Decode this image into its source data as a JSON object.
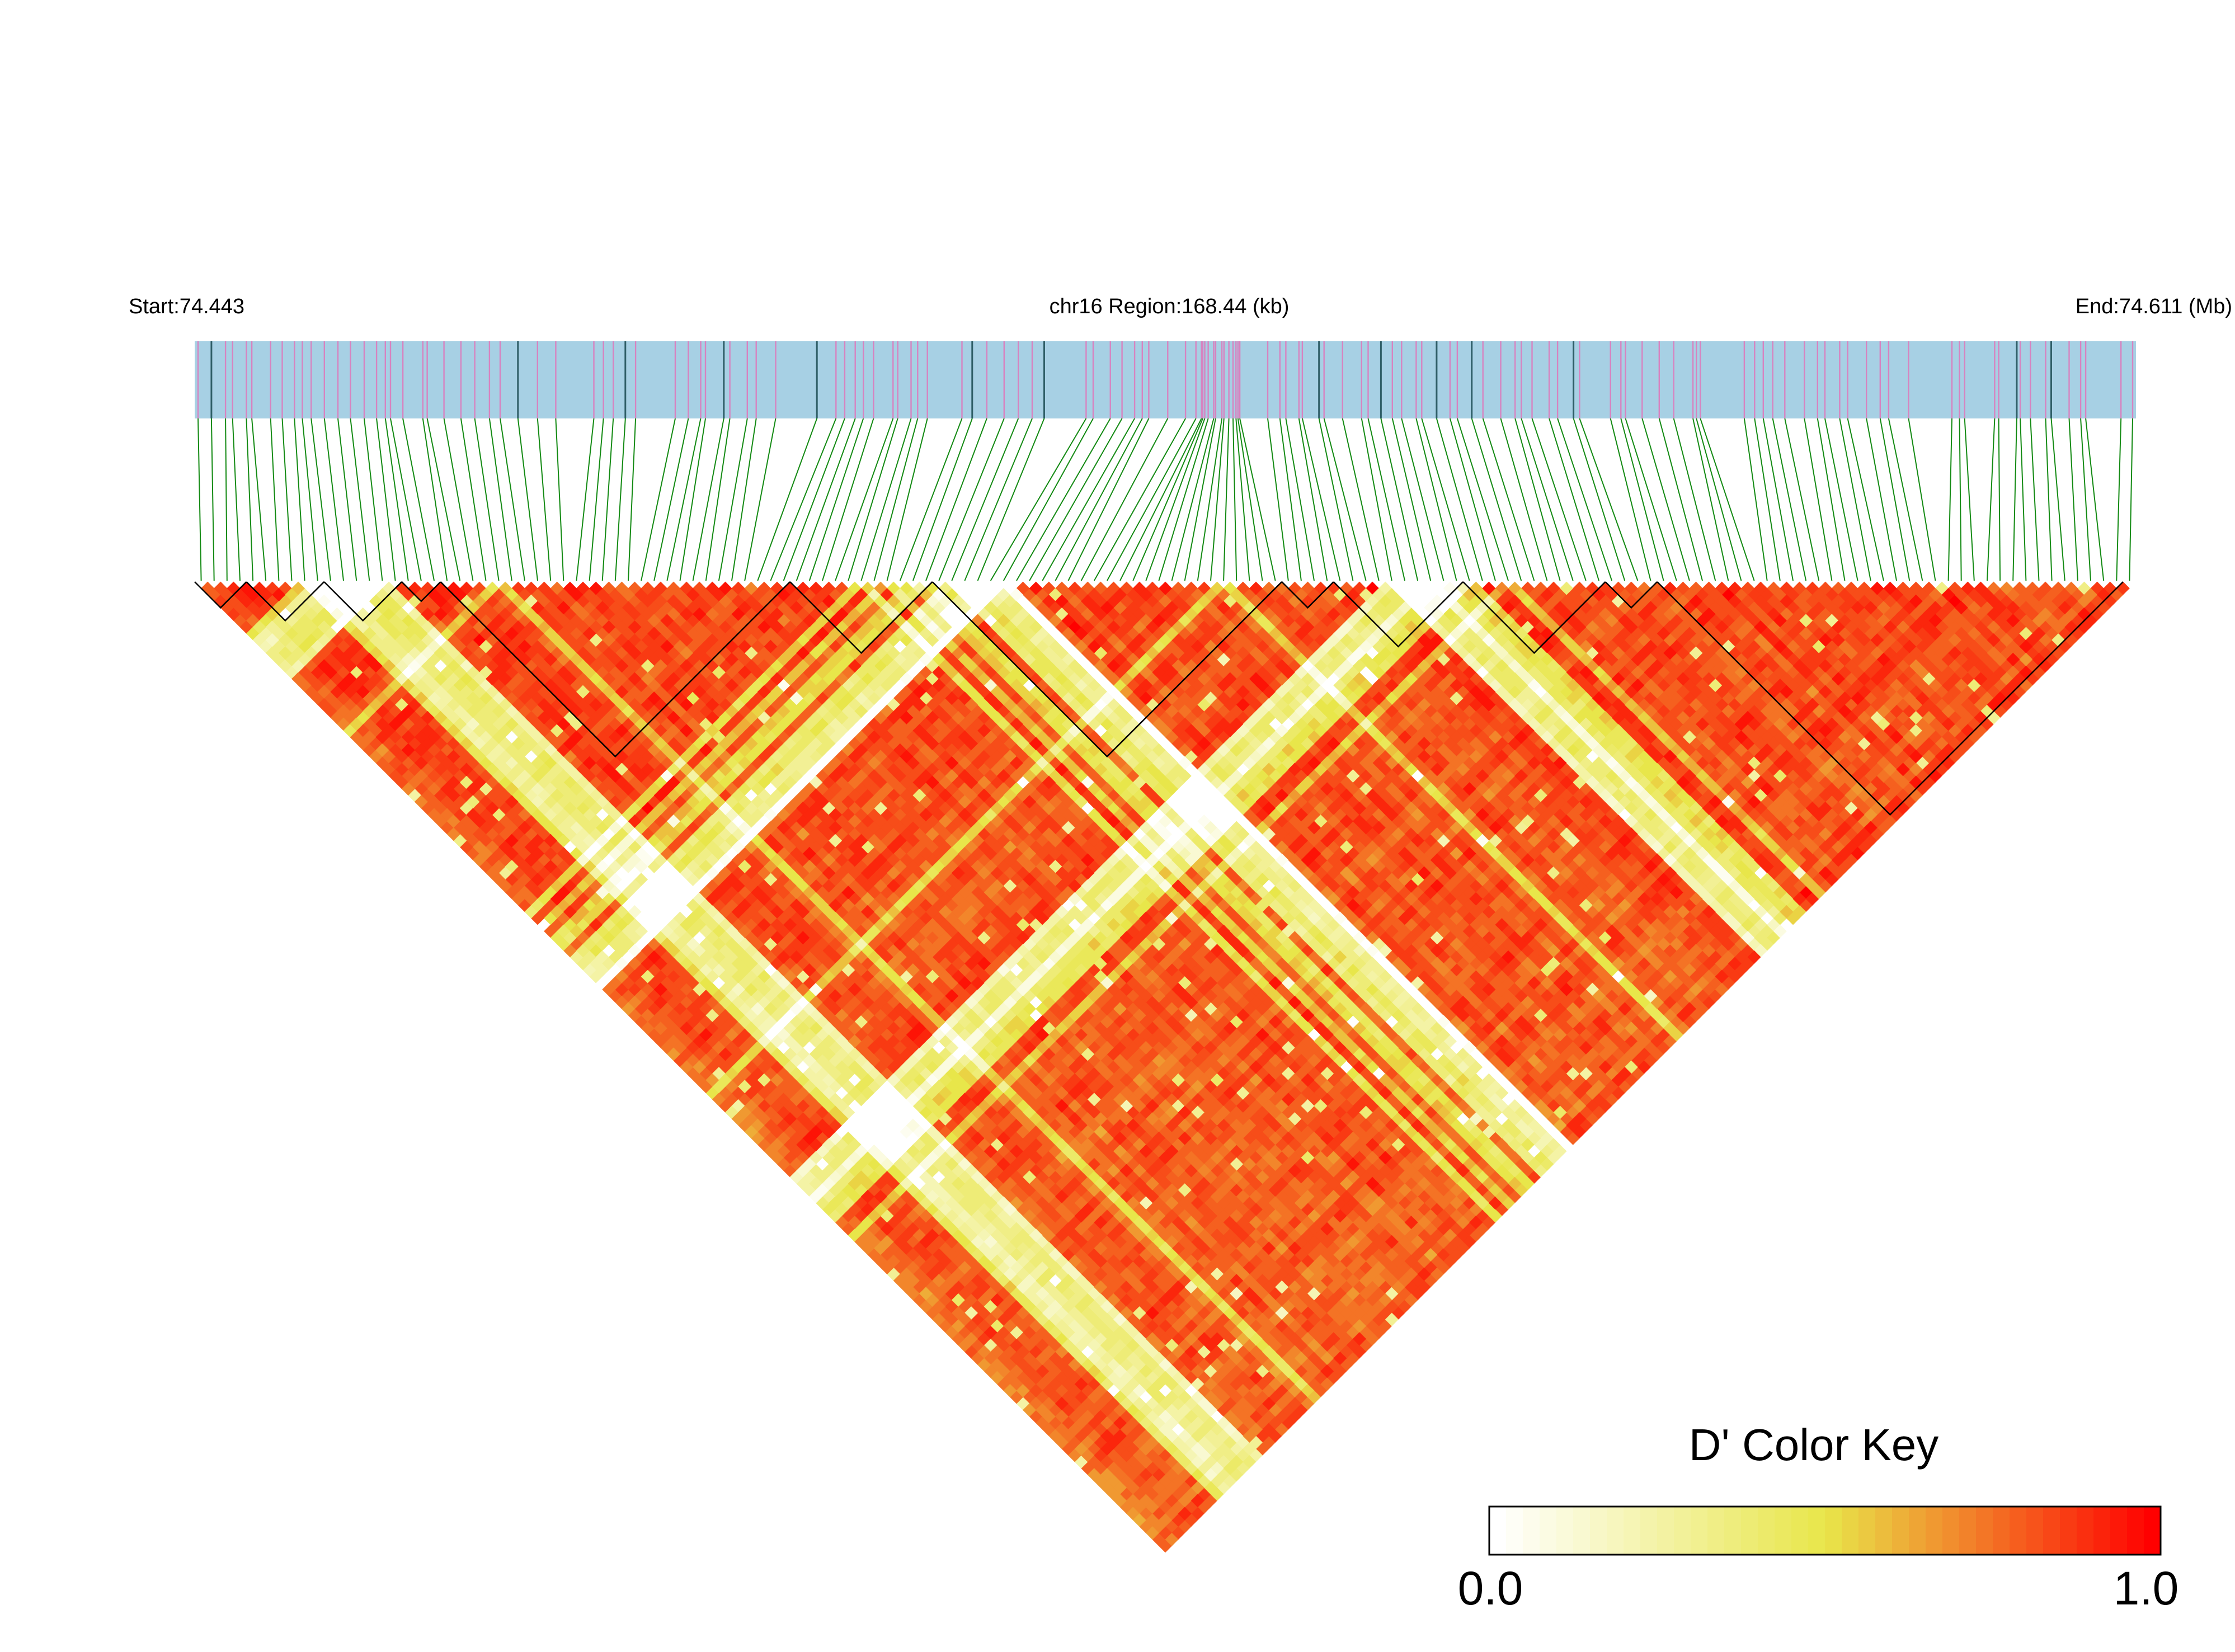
{
  "header": {
    "start_label": "Start:74.443",
    "region_label": "chr16 Region:168.44 (kb)",
    "end_label": "End:74.611 (Mb)"
  },
  "chart_data": {
    "type": "heatmap",
    "subtype": "linkage-disequilibrium-triangle",
    "chromosome": "chr16",
    "region_start_mb": 74.443,
    "region_end_mb": 74.611,
    "region_length_kb": 168.44,
    "metric": "D'",
    "color_scale": {
      "min": 0.0,
      "max": 1.0,
      "low_color": "#ffffff",
      "mid_color": "#e8e64a",
      "high_color": "#ff0000"
    },
    "snp_track_colors": {
      "background": "#a7d0e4",
      "marker": "#d783c0",
      "dark_marker": "#2f5e67",
      "connector": "#138a13"
    },
    "haplotype_blocks_border_color": "#000000",
    "legend": {
      "title": "D' Color Key",
      "min_label": "0.0",
      "max_label": "1.0",
      "placement": "bottom-right"
    }
  }
}
